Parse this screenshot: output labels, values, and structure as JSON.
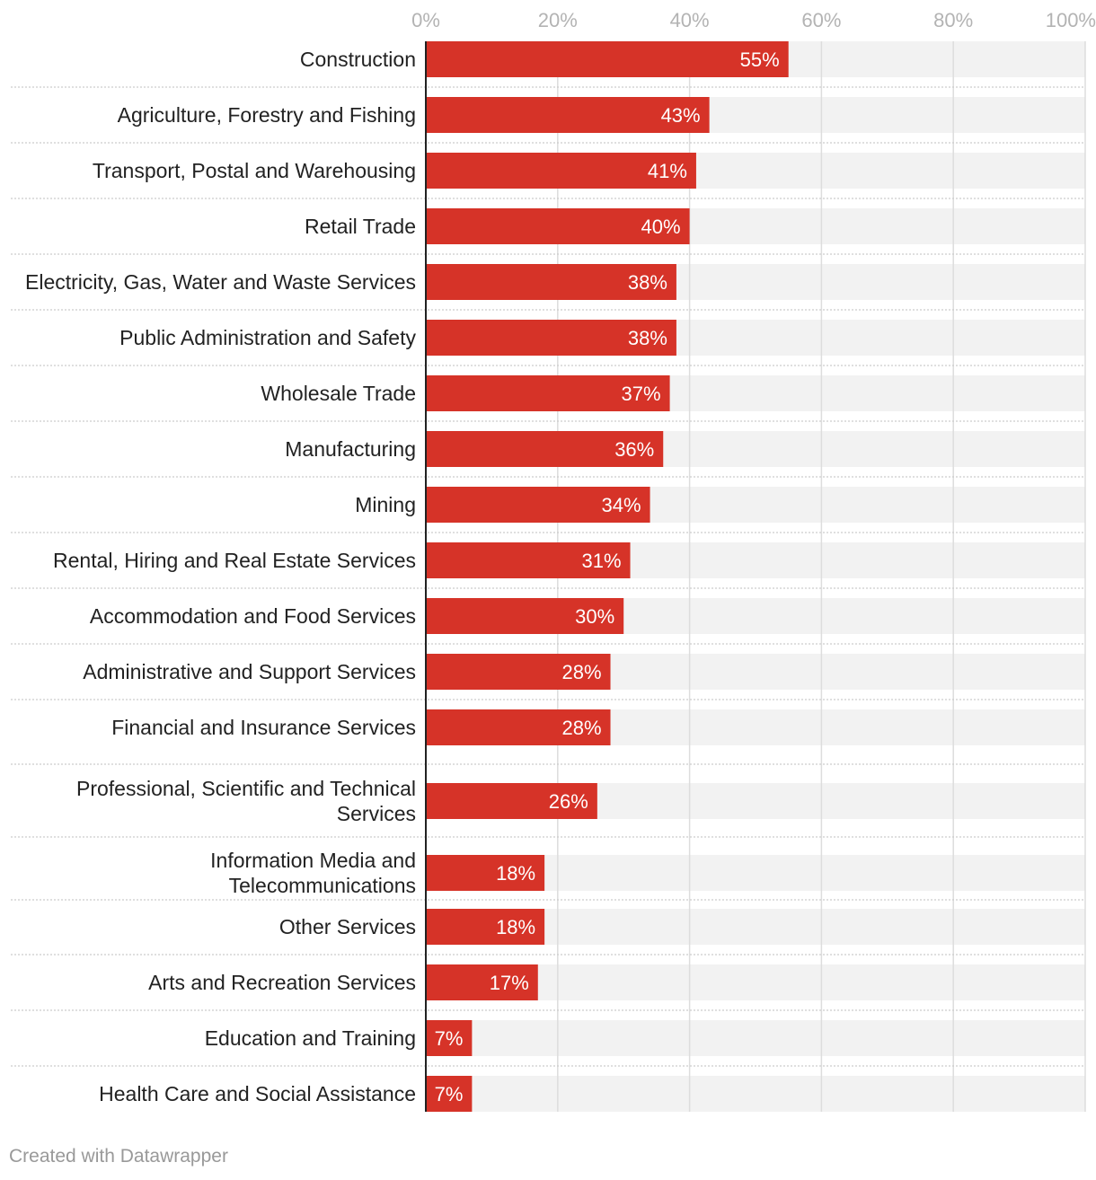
{
  "chart_data": {
    "type": "bar",
    "orientation": "horizontal",
    "xlim": [
      0,
      100
    ],
    "ticks": [
      "0%",
      "20%",
      "40%",
      "60%",
      "80%",
      "100%"
    ],
    "tick_values": [
      0,
      20,
      40,
      60,
      80,
      100
    ],
    "grid": true,
    "bar_color": "#d63328",
    "track_color": "#f2f2f2",
    "categories": [
      {
        "label": [
          "Construction"
        ],
        "value": 55,
        "value_label": "55%"
      },
      {
        "label": [
          "Agriculture, Forestry and Fishing"
        ],
        "value": 43,
        "value_label": "43%"
      },
      {
        "label": [
          "Transport, Postal and Warehousing"
        ],
        "value": 41,
        "value_label": "41%"
      },
      {
        "label": [
          "Retail Trade"
        ],
        "value": 40,
        "value_label": "40%"
      },
      {
        "label": [
          "Electricity, Gas, Water and Waste Services"
        ],
        "value": 38,
        "value_label": "38%"
      },
      {
        "label": [
          "Public Administration and Safety"
        ],
        "value": 38,
        "value_label": "38%"
      },
      {
        "label": [
          "Wholesale Trade"
        ],
        "value": 37,
        "value_label": "37%"
      },
      {
        "label": [
          "Manufacturing"
        ],
        "value": 36,
        "value_label": "36%"
      },
      {
        "label": [
          "Mining"
        ],
        "value": 34,
        "value_label": "34%"
      },
      {
        "label": [
          "Rental, Hiring and Real Estate Services"
        ],
        "value": 31,
        "value_label": "31%"
      },
      {
        "label": [
          "Accommodation and Food Services"
        ],
        "value": 30,
        "value_label": "30%"
      },
      {
        "label": [
          "Administrative and Support Services"
        ],
        "value": 28,
        "value_label": "28%"
      },
      {
        "label": [
          "Financial and Insurance Services"
        ],
        "value": 28,
        "value_label": "28%"
      },
      {
        "label": [
          "Professional, Scientific and Technical",
          "Services"
        ],
        "value": 26,
        "value_label": "26%"
      },
      {
        "label": [
          "Information Media and",
          "Telecommunications"
        ],
        "value": 18,
        "value_label": "18%"
      },
      {
        "label": [
          "Other Services"
        ],
        "value": 18,
        "value_label": "18%"
      },
      {
        "label": [
          "Arts and Recreation Services"
        ],
        "value": 17,
        "value_label": "17%"
      },
      {
        "label": [
          "Education and Training"
        ],
        "value": 7,
        "value_label": "7%"
      },
      {
        "label": [
          "Health Care and Social Assistance"
        ],
        "value": 7,
        "value_label": "7%"
      }
    ]
  },
  "footer": {
    "credit": "Created with Datawrapper"
  }
}
